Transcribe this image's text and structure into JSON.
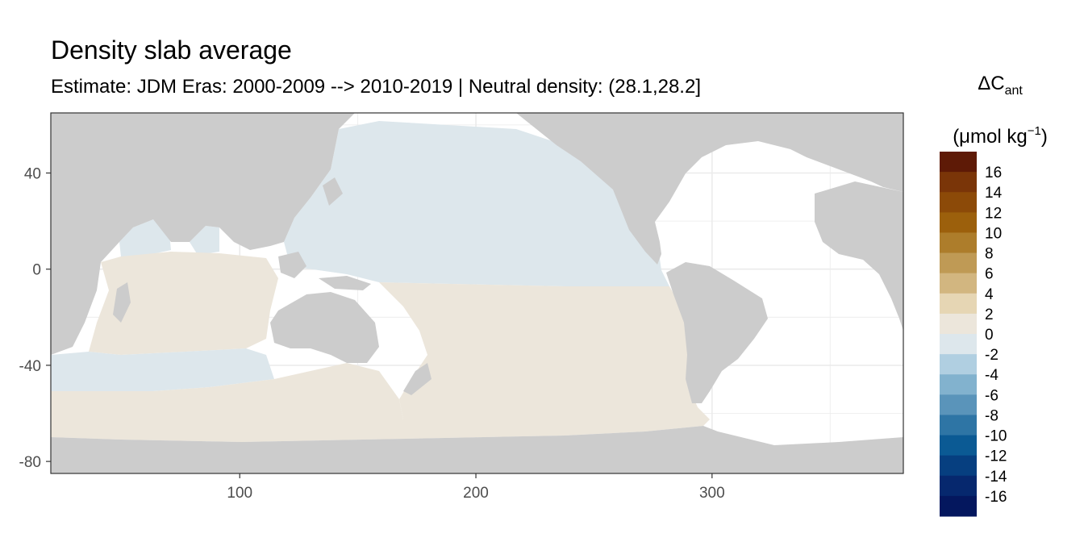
{
  "chart_data": {
    "type": "heatmap",
    "title": "Density slab average",
    "subtitle": "Estimate: JDM Eras: 2000-2009 --> 2010-2019 | Neutral density: (28.1,28.2]",
    "legend": {
      "title_main": "ΔC",
      "title_sub": "ant",
      "unit_main": "(μmol kg",
      "unit_sup": "−1",
      "unit_end": ")",
      "placement": "right",
      "breaks": [
        "16",
        "14",
        "12",
        "10",
        "8",
        "6",
        "4",
        "2",
        "0",
        "-2",
        "-4",
        "-6",
        "-8",
        "-10",
        "-12",
        "-14",
        "-16"
      ],
      "colors": [
        "#5e1a06",
        "#7a3508",
        "#8c4a08",
        "#9c600c",
        "#ad7d2b",
        "#bf9a55",
        "#d2b680",
        "#e6d6b4",
        "#ece6db",
        "#dde7ec",
        "#b0cfe1",
        "#82b2ce",
        "#5a94ba",
        "#2e75a5",
        "#0b5a94",
        "#063f80",
        "#06286e",
        "#04175e"
      ]
    },
    "x_axis": {
      "range": [
        20,
        381
      ],
      "ticks": [
        100,
        200,
        300
      ],
      "tick_labels": [
        "100",
        "200",
        "300"
      ]
    },
    "y_axis": {
      "range": [
        -85,
        65
      ],
      "ticks": [
        40,
        0,
        -40,
        -80
      ],
      "tick_labels": [
        "40",
        "0",
        "-40",
        "-80"
      ]
    },
    "grid": true,
    "land_color": "#cccccc",
    "regions": [
      {
        "name": "North Pacific",
        "bin": "-2 to 0",
        "color": "#dde7ec"
      },
      {
        "name": "Southern Indian Ocean",
        "bin": "-2 to 0",
        "color": "#dde7ec"
      },
      {
        "name": "South Pacific",
        "bin": "0 to 2",
        "color": "#ece6db"
      },
      {
        "name": "Indian Ocean",
        "bin": "0 to 2",
        "color": "#ece6db"
      },
      {
        "name": "Southern Ocean",
        "bin": "0 to 2",
        "color": "#ece6db"
      }
    ]
  }
}
